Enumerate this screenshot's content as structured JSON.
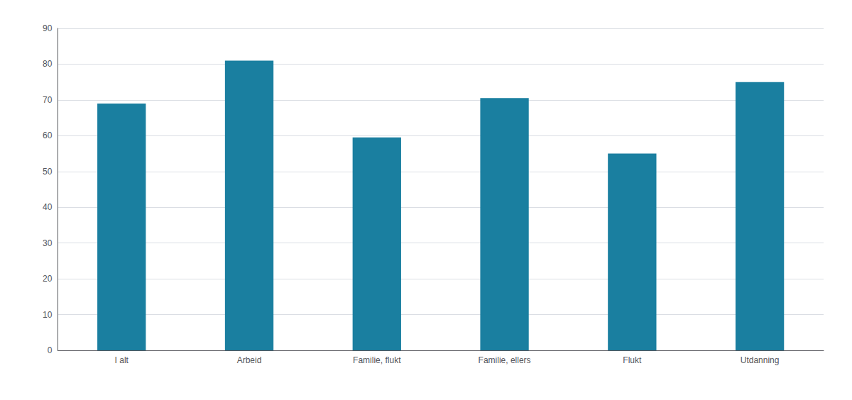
{
  "chart_data": {
    "type": "bar",
    "categories": [
      "I alt",
      "Arbeid",
      "Familie, flukt",
      "Familie, ellers",
      "Flukt",
      "Utdanning"
    ],
    "values": [
      69,
      81,
      59.5,
      70.5,
      55,
      75
    ],
    "color": "#1a7fa0",
    "ylim": [
      0,
      90
    ],
    "yticks": [
      0,
      10,
      20,
      30,
      40,
      50,
      60,
      70,
      80,
      90
    ],
    "grid": true
  }
}
